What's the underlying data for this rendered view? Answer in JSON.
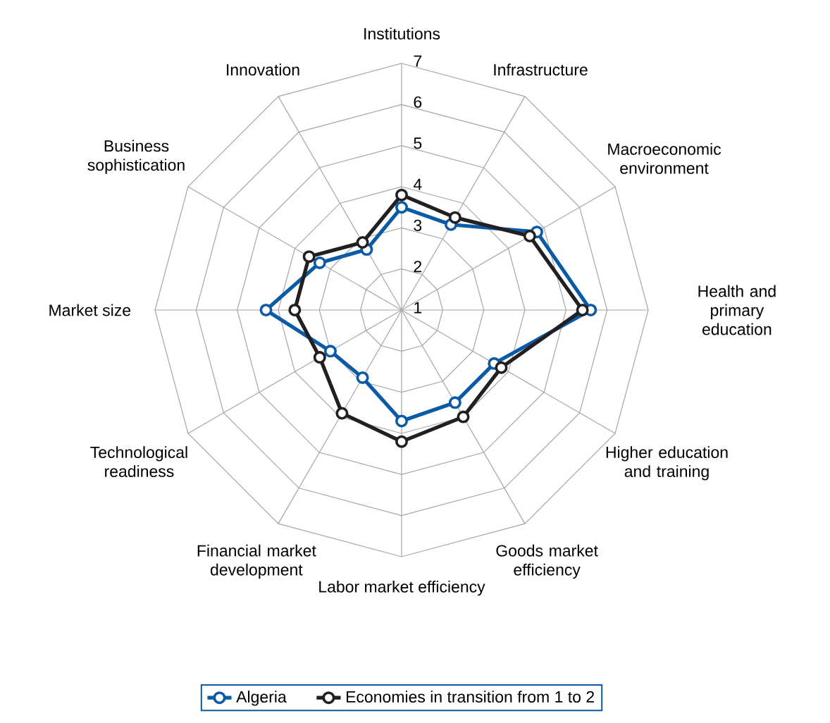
{
  "chart_data": {
    "type": "radar",
    "categories": [
      "Institutions",
      "Infrastructure",
      "Macroeconomic environment",
      "Health and primary education",
      "Higher education and training",
      "Goods market efficiency",
      "Labor market efficiency",
      "Financial market development",
      "Technological readiness",
      "Market size",
      "Business sophistication",
      "Innovation"
    ],
    "series": [
      {
        "name": "Algeria",
        "color": "#0a5aa5",
        "values": [
          3.5,
          3.4,
          4.8,
          5.6,
          3.6,
          3.6,
          3.7,
          2.9,
          3.0,
          4.3,
          3.3,
          2.7
        ]
      },
      {
        "name": "Economies in transition from 1 to 2",
        "color": "#231f20",
        "values": [
          3.8,
          3.6,
          4.6,
          5.4,
          3.8,
          4.0,
          4.2,
          3.9,
          3.3,
          3.6,
          3.6,
          2.9
        ]
      }
    ],
    "ylim": [
      1,
      7
    ],
    "yticks": [
      1,
      2,
      3,
      4,
      5,
      6,
      7
    ],
    "grid": true,
    "legend": "bottom",
    "marker": "circle",
    "line_style": "solid"
  }
}
